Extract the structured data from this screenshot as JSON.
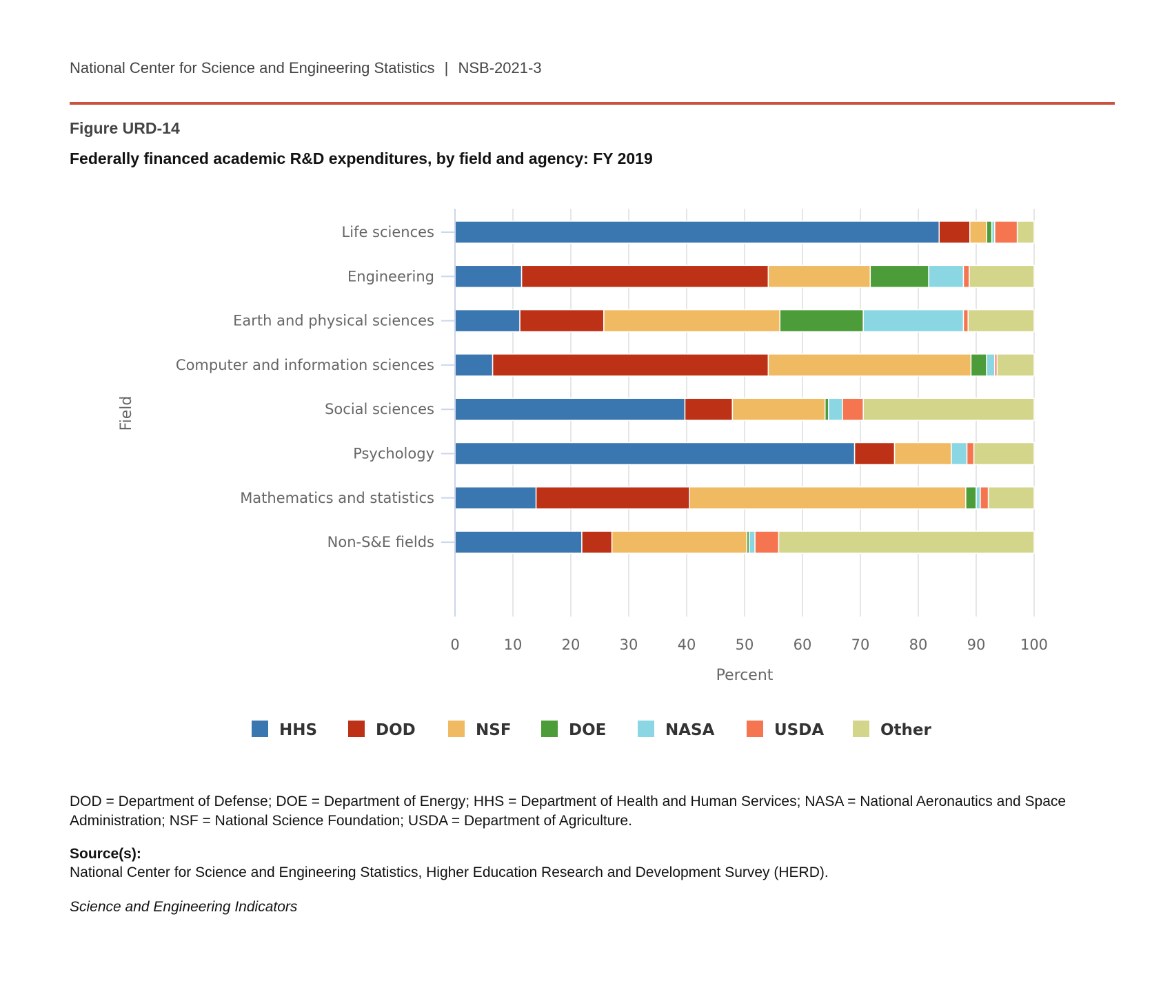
{
  "header": {
    "org": "National Center for Science and Engineering Statistics",
    "separator": "|",
    "report": "NSB-2021-3"
  },
  "figure": {
    "label": "Figure URD-14",
    "title": "Federally financed academic R&D expenditures, by field and agency: FY 2019"
  },
  "chart_data": {
    "type": "bar",
    "orientation": "horizontal",
    "stacked": true,
    "title": "Federally financed academic R&D expenditures, by field and agency: FY 2019",
    "xlabel": "Percent",
    "ylabel": "Field",
    "xlim": [
      0,
      100
    ],
    "xticks": [
      0,
      10,
      20,
      30,
      40,
      50,
      60,
      70,
      80,
      90,
      100
    ],
    "grid": true,
    "legend_position": "bottom",
    "categories": [
      "Life sciences",
      "Engineering",
      "Earth and physical sciences",
      "Computer and information sciences",
      "Social sciences",
      "Psychology",
      "Mathematics and statistics",
      "Non-S&E fields"
    ],
    "series": [
      {
        "name": "HHS",
        "color": "#3a76af",
        "values": [
          83.6,
          11.5,
          11.2,
          6.5,
          39.7,
          69.0,
          14.0,
          21.9
        ]
      },
      {
        "name": "DOD",
        "color": "#bd3116",
        "values": [
          5.3,
          42.6,
          14.5,
          47.6,
          8.2,
          6.9,
          26.5,
          5.2
        ]
      },
      {
        "name": "NSF",
        "color": "#f0ba62",
        "values": [
          2.9,
          17.6,
          30.4,
          35.0,
          16.0,
          9.8,
          47.7,
          23.3
        ]
      },
      {
        "name": "DOE",
        "color": "#4c9d39",
        "values": [
          0.9,
          10.1,
          14.4,
          2.7,
          0.6,
          0.0,
          1.8,
          0.4
        ]
      },
      {
        "name": "NASA",
        "color": "#8ad7e3",
        "values": [
          0.5,
          6.0,
          17.3,
          1.4,
          2.4,
          2.7,
          0.7,
          1.0
        ]
      },
      {
        "name": "USDA",
        "color": "#f47550",
        "values": [
          3.9,
          1.0,
          0.8,
          0.4,
          3.6,
          1.2,
          1.4,
          4.1
        ]
      },
      {
        "name": "Other",
        "color": "#d3d68a",
        "values": [
          2.9,
          11.2,
          11.4,
          6.4,
          29.5,
          10.4,
          7.9,
          44.1
        ]
      }
    ]
  },
  "notes": {
    "abbreviations": "DOD = Department of Defense; DOE = Department of Energy; HHS = Department of Health and Human Services; NASA = National Aeronautics and Space Administration; NSF = National Science Foundation; USDA = Department of Agriculture.",
    "source_label": "Source(s):",
    "source_text": "National Center for Science and Engineering Statistics, Higher Education Research and Development Survey (HERD).",
    "publication": "Science and Engineering Indicators"
  }
}
